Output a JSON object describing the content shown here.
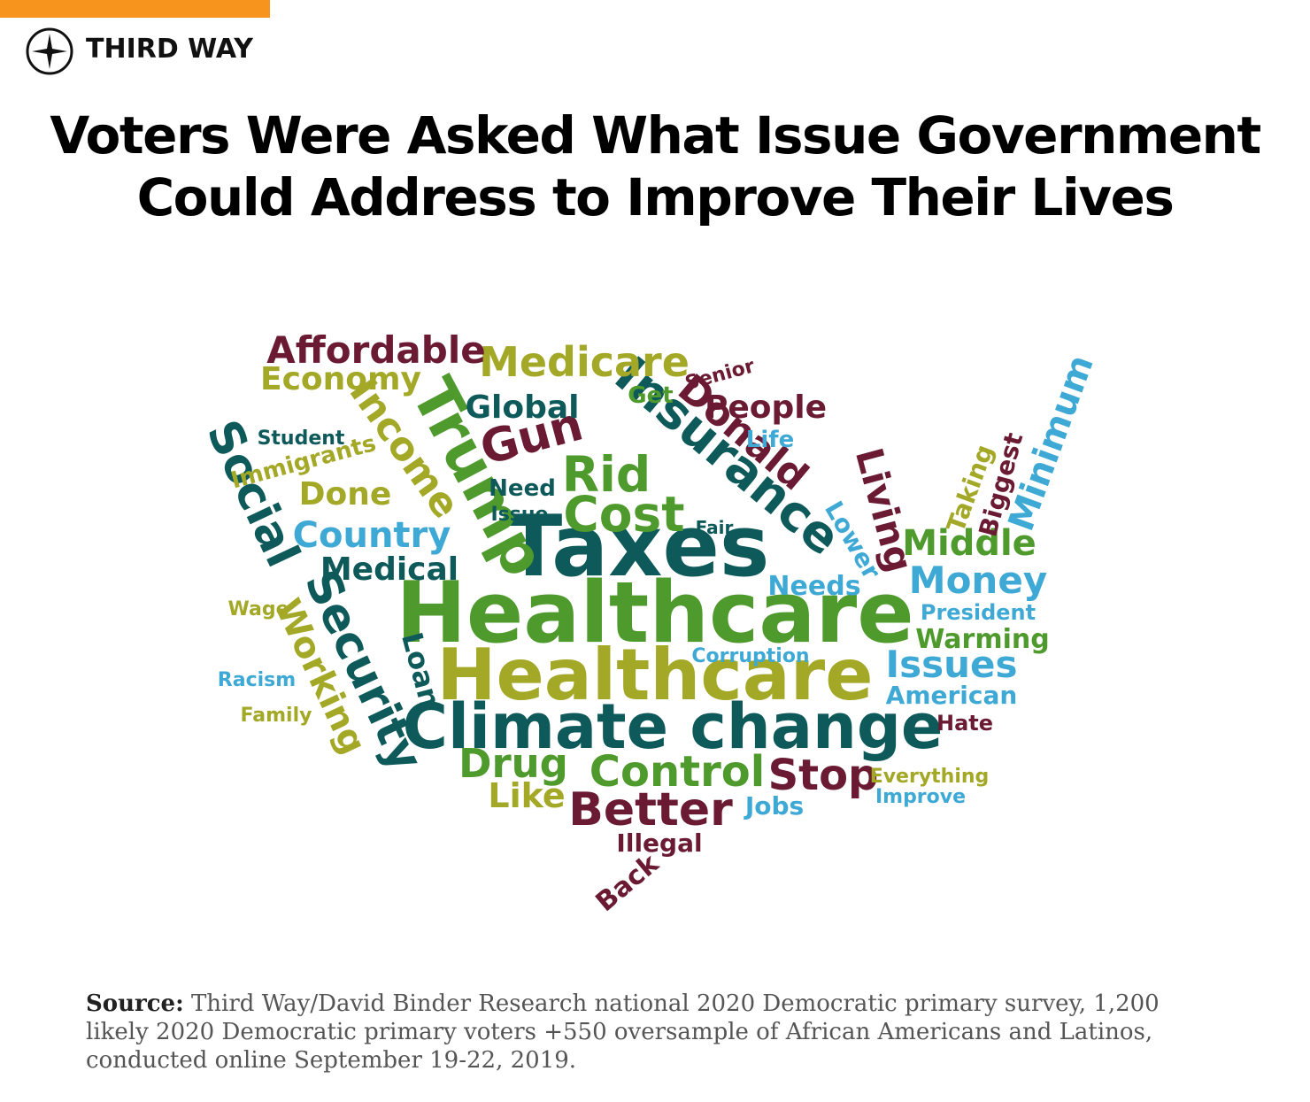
{
  "header": {
    "brand": "THIRD WAY"
  },
  "title": [
    "Voters Were Asked What Issue Government",
    "Could Address to Improve Their Lives"
  ],
  "cloud": {
    "words": [
      "Healthcare",
      "Healthcare",
      "Taxes",
      "Climate change",
      "Trump",
      "Social",
      "Security",
      "Insurance",
      "Donald",
      "Income",
      "Cost",
      "Rid",
      "Gun",
      "Medicare",
      "Affordable",
      "Economy",
      "Global",
      "People",
      "Living",
      "Middle",
      "Money",
      "Country",
      "Medical",
      "Drug",
      "Control",
      "Stop",
      "Better",
      "Issues",
      "American",
      "Warming",
      "President",
      "Minimum",
      "Biggest",
      "Taking",
      "Lower",
      "Needs",
      "Working",
      "Loan",
      "Like",
      "Illegal",
      "Back",
      "Jobs",
      "Hate",
      "Done",
      "Immigrants",
      "Student",
      "Racism",
      "Family",
      "Wage",
      "Corruption",
      "Everything",
      "Improve",
      "Life",
      "Need",
      "Issue",
      "Senior",
      "Get",
      "Fair"
    ]
  },
  "source": {
    "label": "Source:",
    "text": "Third Way/David Binder Research national 2020 Democratic primary survey, 1,200 likely 2020 Democratic primary voters +550 oversample of African Americans and Latinos, conducted online September 19-22, 2019."
  }
}
